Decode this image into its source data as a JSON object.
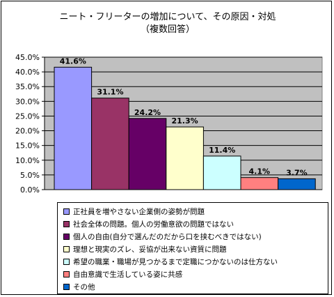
{
  "chart_data": {
    "type": "bar",
    "title_line1": "ニート・フリーターの増加について、その原因・対処",
    "title_line2": "（複数回答）",
    "categories": [
      "正社員を増やさない企業側の姿勢が問題",
      "社会全体の問題。個人の労働意欲の問題ではない",
      "個人の自由(自分で選んだのだから口を挟むべきではない)",
      "理想と現実のズレ、妥協が出来ない資質に問題",
      "希望の職業・職場が見つかるまで定職につかないのは仕方ない",
      "自由意識で生活している姿に共感",
      "その他"
    ],
    "values": [
      41.6,
      31.1,
      24.2,
      21.3,
      11.4,
      4.1,
      3.7
    ],
    "value_labels": [
      "41.6%",
      "31.1%",
      "24.2%",
      "21.3%",
      "11.4%",
      "4.1%",
      "3.7%"
    ],
    "colors": [
      "#9999ff",
      "#993366",
      "#660066",
      "#ffffcc",
      "#ccffff",
      "#ff8080",
      "#0066cc"
    ],
    "ylim": [
      0,
      45
    ],
    "yticks": [
      "0.0%",
      "5.0%",
      "10.0%",
      "15.0%",
      "20.0%",
      "25.0%",
      "30.0%",
      "35.0%",
      "40.0%",
      "45.0%"
    ],
    "grid": true,
    "plot_background": "#c0c0c0",
    "legend_position": "bottom"
  }
}
